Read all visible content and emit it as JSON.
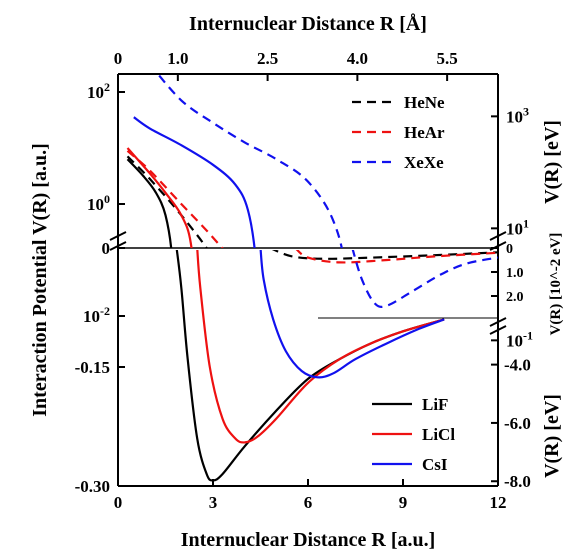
{
  "chart_data": {
    "type": "line",
    "title": "",
    "xlabel": "Internuclear Distance R [a.u.]",
    "x2label": "Internuclear Distance R [Å]",
    "ylabel": "Interaction Potential V(R) [a.u.]",
    "xlim": [
      0,
      12
    ],
    "bottom_xticks": [
      "0",
      "3",
      "6",
      "9",
      "12"
    ],
    "top_xticks": [
      "0",
      "1.0",
      "2.5",
      "4.0",
      "5.5"
    ],
    "left_upper_yticks": [
      "10^2",
      "10^0",
      "10^-2"
    ],
    "left_lower_yticks": [
      "0",
      "-0.15",
      "-0.30"
    ],
    "right_upper_label": "V(R) [eV]",
    "right_upper_ticks": [
      "10^3",
      "10^1",
      "10^-1"
    ],
    "right_mid_label": "V(R) [10^-2 eV]",
    "right_mid_ticks": [
      "0",
      "1.0",
      "2.0"
    ],
    "right_lower_label": "V(R) [eV]",
    "right_lower_ticks": [
      "-4.0",
      "-6.0",
      "-8.0"
    ],
    "legend_rare_gas": [
      "HeNe",
      "HeAr",
      "XeXe"
    ],
    "legend_ionic": [
      "LiF",
      "LiCl",
      "CsI"
    ],
    "colors": {
      "black": "#000000",
      "red": "#ee1111",
      "blue": "#1111ee"
    },
    "series": [
      {
        "name": "HeNe",
        "style": "dashed",
        "color": "black",
        "upper_log10": [
          [
            0.3,
            0.85
          ],
          [
            1.0,
            0.45
          ],
          [
            2.0,
            -0.2
          ],
          [
            3.0,
            -0.95
          ],
          [
            4.0,
            -1.9
          ],
          [
            4.5,
            -2.7
          ],
          [
            4.8,
            -3.4
          ]
        ],
        "well_mid": [
          [
            4.8,
            0.0
          ],
          [
            5.5,
            0.35
          ],
          [
            6.5,
            0.45
          ],
          [
            8.0,
            0.4
          ],
          [
            10.0,
            0.3
          ],
          [
            12.0,
            0.18
          ]
        ]
      },
      {
        "name": "HeAr",
        "style": "dashed",
        "color": "red",
        "upper_log10": [
          [
            0.3,
            0.95
          ],
          [
            1.0,
            0.6
          ],
          [
            2.0,
            0.0
          ],
          [
            3.0,
            -0.6
          ],
          [
            4.0,
            -1.3
          ],
          [
            5.0,
            -2.3
          ],
          [
            5.6,
            -3.4
          ]
        ],
        "well_mid": [
          [
            5.6,
            0.0
          ],
          [
            6.0,
            0.4
          ],
          [
            7.0,
            0.6
          ],
          [
            8.5,
            0.5
          ],
          [
            10.0,
            0.35
          ],
          [
            12.0,
            0.2
          ]
        ]
      },
      {
        "name": "XeXe",
        "style": "dashed",
        "color": "blue",
        "upper_log10": [
          [
            1.0,
            2.5
          ],
          [
            2.0,
            1.85
          ],
          [
            3.0,
            1.45
          ],
          [
            4.0,
            1.1
          ],
          [
            5.0,
            0.8
          ],
          [
            6.0,
            0.4
          ],
          [
            6.8,
            -0.3
          ],
          [
            7.2,
            -1.3
          ],
          [
            7.4,
            -3.4
          ]
        ],
        "well_mid": [
          [
            7.4,
            0.0
          ],
          [
            7.7,
            1.3
          ],
          [
            8.1,
            2.3
          ],
          [
            8.5,
            2.4
          ],
          [
            9.3,
            1.8
          ],
          [
            10.2,
            1.1
          ],
          [
            11.0,
            0.65
          ],
          [
            12.0,
            0.4
          ]
        ]
      },
      {
        "name": "LiF",
        "style": "solid",
        "color": "black",
        "upper_log10": [
          [
            0.3,
            0.8
          ],
          [
            0.8,
            0.5
          ],
          [
            1.2,
            0.2
          ],
          [
            1.5,
            -0.2
          ],
          [
            1.7,
            -0.9
          ],
          [
            1.8,
            -2.2
          ],
          [
            1.85,
            -3.4
          ]
        ],
        "lower": [
          [
            1.85,
            0.0
          ],
          [
            2.0,
            -0.05
          ],
          [
            2.2,
            -0.14
          ],
          [
            2.5,
            -0.24
          ],
          [
            2.8,
            -0.285
          ],
          [
            3.0,
            -0.293
          ],
          [
            3.3,
            -0.285
          ],
          [
            4.0,
            -0.25
          ],
          [
            5.0,
            -0.205
          ],
          [
            6.0,
            -0.165
          ],
          [
            7.0,
            -0.14
          ],
          [
            8.0,
            -0.12
          ],
          [
            9.0,
            -0.105
          ],
          [
            10.3,
            -0.09
          ]
        ]
      },
      {
        "name": "LiCl",
        "style": "solid",
        "color": "red",
        "upper_log10": [
          [
            0.3,
            1.0
          ],
          [
            1.0,
            0.55
          ],
          [
            1.5,
            0.2
          ],
          [
            2.0,
            -0.2
          ],
          [
            2.3,
            -0.7
          ],
          [
            2.45,
            -1.8
          ],
          [
            2.5,
            -3.4
          ]
        ],
        "lower": [
          [
            2.5,
            0.0
          ],
          [
            2.6,
            -0.05
          ],
          [
            2.9,
            -0.15
          ],
          [
            3.3,
            -0.215
          ],
          [
            3.7,
            -0.24
          ],
          [
            4.0,
            -0.245
          ],
          [
            4.4,
            -0.238
          ],
          [
            5.0,
            -0.215
          ],
          [
            6.0,
            -0.17
          ],
          [
            7.0,
            -0.14
          ],
          [
            8.0,
            -0.12
          ],
          [
            9.0,
            -0.105
          ],
          [
            10.3,
            -0.09
          ]
        ]
      },
      {
        "name": "CsI",
        "style": "solid",
        "color": "blue",
        "upper_log10": [
          [
            0.5,
            1.55
          ],
          [
            1.0,
            1.35
          ],
          [
            2.0,
            1.05
          ],
          [
            3.0,
            0.7
          ],
          [
            3.7,
            0.35
          ],
          [
            4.1,
            -0.1
          ],
          [
            4.35,
            -1.0
          ],
          [
            4.45,
            -2.3
          ],
          [
            4.5,
            -3.4
          ]
        ],
        "lower": [
          [
            4.5,
            0.0
          ],
          [
            4.6,
            -0.04
          ],
          [
            4.9,
            -0.09
          ],
          [
            5.3,
            -0.13
          ],
          [
            5.8,
            -0.155
          ],
          [
            6.3,
            -0.163
          ],
          [
            6.8,
            -0.158
          ],
          [
            7.5,
            -0.14
          ],
          [
            8.5,
            -0.12
          ],
          [
            9.5,
            -0.102
          ],
          [
            10.3,
            -0.09
          ]
        ]
      }
    ]
  }
}
